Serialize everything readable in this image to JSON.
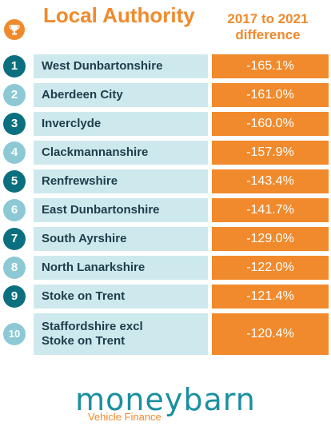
{
  "header": {
    "left_title": "Local Authority",
    "right_title": "2017 to 2021 difference"
  },
  "colors": {
    "accent_orange": "#f08a2c",
    "bar_light_blue": "#cde9ee",
    "circle_dark": "#0c6f80",
    "circle_light": "#8cc9d5"
  },
  "rows": [
    {
      "rank": "1",
      "name": "West Dunbartonshire",
      "value": "-165.1%"
    },
    {
      "rank": "2",
      "name": "Aberdeen City",
      "value": "-161.0%"
    },
    {
      "rank": "3",
      "name": "Inverclyde",
      "value": "-160.0%"
    },
    {
      "rank": "4",
      "name": "Clackmannanshire",
      "value": "-157.9%"
    },
    {
      "rank": "5",
      "name": "Renfrewshire",
      "value": "-143.4%"
    },
    {
      "rank": "6",
      "name": "East Dunbartonshire",
      "value": "-141.7%"
    },
    {
      "rank": "7",
      "name": "South Ayrshire",
      "value": "-129.0%"
    },
    {
      "rank": "8",
      "name": "North Lanarkshire",
      "value": "-122.0%"
    },
    {
      "rank": "9",
      "name": "Stoke on Trent",
      "value": "-121.4%"
    },
    {
      "rank": "10",
      "name": "Staffordshire excl Stoke on Trent",
      "value": "-120.4%"
    }
  ],
  "logo": {
    "name": "moneybarn",
    "tagline": "Vehicle Finance"
  }
}
